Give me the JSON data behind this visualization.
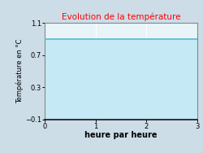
{
  "title": "Evolution de la température",
  "title_color": "#ff0000",
  "xlabel": "heure par heure",
  "ylabel": "Température en °C",
  "xlim": [
    0,
    3
  ],
  "ylim": [
    -0.1,
    1.1
  ],
  "xticks": [
    0,
    1,
    2,
    3
  ],
  "yticks": [
    -0.1,
    0.3,
    0.7,
    1.1
  ],
  "line_y": 0.9,
  "line_color": "#55bbcc",
  "fill_color": "#c5e9f5",
  "plot_bg": "#e8f4f8",
  "figure_bg": "#ccdde8",
  "grid_color": "#ffffff",
  "line_width": 1.2,
  "x_data": [
    0,
    3
  ]
}
